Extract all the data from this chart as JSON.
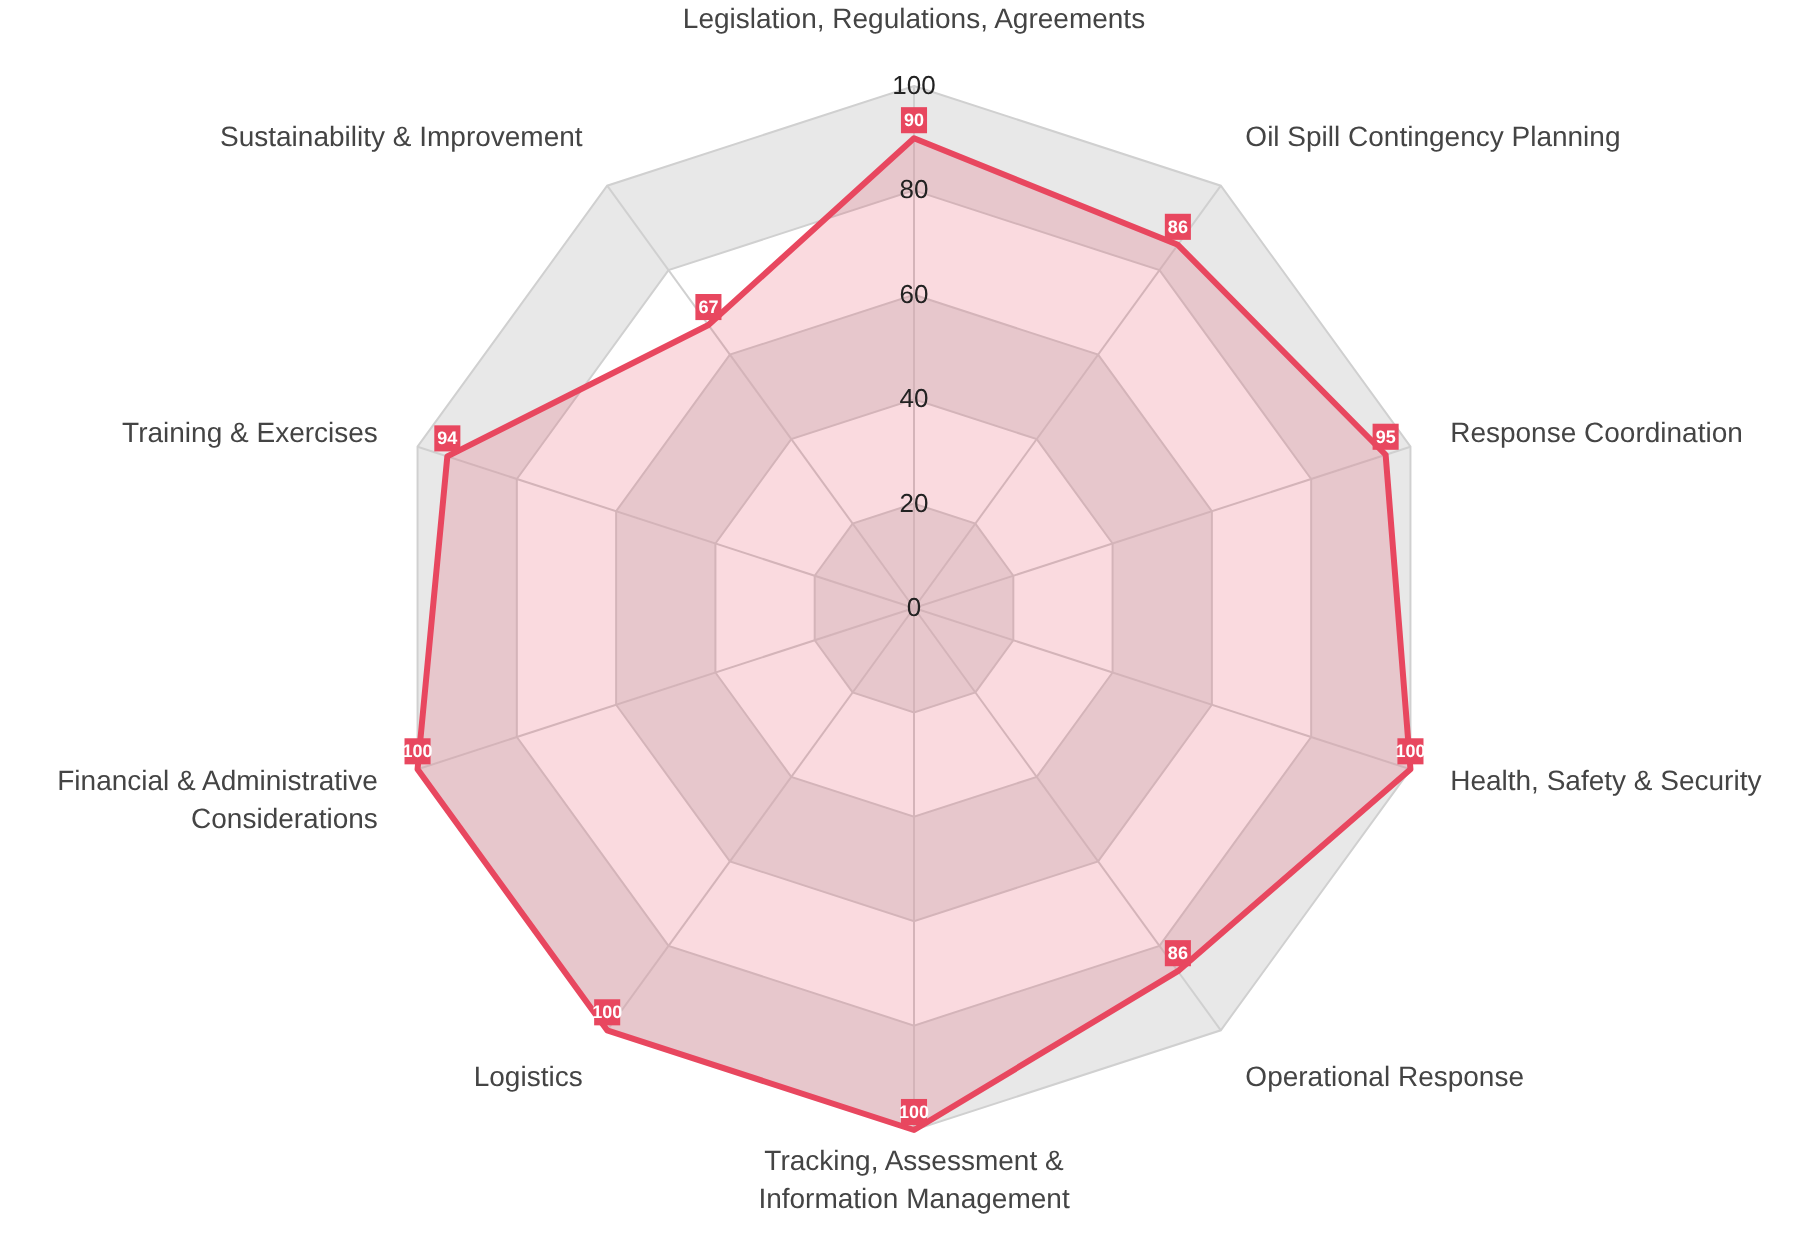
{
  "chart_data": {
    "type": "radar",
    "categories": [
      "Legislation, Regulations, Agreements",
      "Oil Spill Contingency Planning",
      "Response Coordination",
      "Health, Safety & Security",
      "Operational Response",
      "Tracking, Assessment & Information Management",
      "Logistics",
      "Financial & Administrative Considerations",
      "Training & Exercises",
      "Sustainability & Improvement"
    ],
    "series": [
      {
        "color": "#e8475f",
        "values": [
          90,
          86,
          95,
          100,
          86,
          100,
          100,
          100,
          94,
          67
        ]
      }
    ],
    "ylim": [
      0,
      100
    ],
    "yticks": [
      0,
      20,
      40,
      60,
      80,
      100
    ],
    "grid": true,
    "data_labels": true,
    "marker": "square",
    "line_style": "solid"
  }
}
